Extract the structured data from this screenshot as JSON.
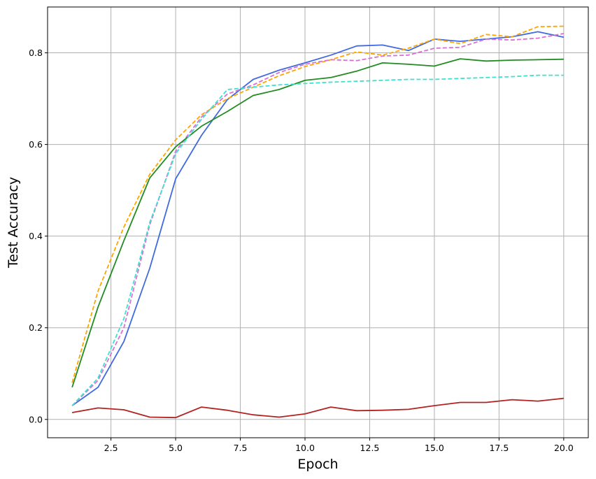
{
  "chart_data": {
    "type": "line",
    "title": "",
    "xlabel": "Epoch",
    "ylabel": "Test Accuracy",
    "xlim": [
      0.05,
      20.95
    ],
    "ylim": [
      -0.04,
      0.9
    ],
    "grid": true,
    "legend": "none",
    "x_ticks": [
      {
        "value": 2.5,
        "label": "2.5"
      },
      {
        "value": 5.0,
        "label": "5.0"
      },
      {
        "value": 7.5,
        "label": "7.5"
      },
      {
        "value": 10.0,
        "label": "10.0"
      },
      {
        "value": 12.5,
        "label": "12.5"
      },
      {
        "value": 15.0,
        "label": "15.0"
      },
      {
        "value": 17.5,
        "label": "17.5"
      },
      {
        "value": 20.0,
        "label": "20.0"
      }
    ],
    "y_ticks": [
      {
        "value": 0.0,
        "label": "0.0"
      },
      {
        "value": 0.2,
        "label": "0.2"
      },
      {
        "value": 0.4,
        "label": "0.4"
      },
      {
        "value": 0.6,
        "label": "0.6"
      },
      {
        "value": 0.8,
        "label": "0.8"
      }
    ],
    "x": [
      1,
      2,
      3,
      4,
      5,
      6,
      7,
      8,
      9,
      10,
      11,
      12,
      13,
      14,
      15,
      16,
      17,
      18,
      19,
      20
    ],
    "series": [
      {
        "color": "#4169e1",
        "dash": "solid",
        "values": [
          0.03,
          0.07,
          0.17,
          0.33,
          0.525,
          0.62,
          0.698,
          0.742,
          0.762,
          0.778,
          0.795,
          0.815,
          0.817,
          0.805,
          0.83,
          0.825,
          0.83,
          0.835,
          0.846,
          0.834
        ]
      },
      {
        "color": "#ffa500",
        "dash": "dashed",
        "values": [
          0.08,
          0.28,
          0.42,
          0.535,
          0.61,
          0.665,
          0.7,
          0.725,
          0.75,
          0.77,
          0.785,
          0.802,
          0.795,
          0.81,
          0.83,
          0.82,
          0.84,
          0.835,
          0.857,
          0.858
        ]
      },
      {
        "color": "#da70d6",
        "dash": "dashed",
        "values": [
          0.03,
          0.085,
          0.2,
          0.425,
          0.585,
          0.66,
          0.71,
          0.73,
          0.757,
          0.775,
          0.785,
          0.783,
          0.793,
          0.795,
          0.81,
          0.812,
          0.83,
          0.828,
          0.832,
          0.842
        ]
      },
      {
        "color": "#228b22",
        "dash": "solid",
        "values": [
          0.07,
          0.245,
          0.39,
          0.527,
          0.595,
          0.64,
          0.672,
          0.707,
          0.72,
          0.74,
          0.746,
          0.76,
          0.778,
          0.775,
          0.771,
          0.787,
          0.782,
          0.784,
          0.785,
          0.786
        ]
      },
      {
        "color": "#40e0d0",
        "dash": "dashed",
        "values": [
          0.03,
          0.09,
          0.22,
          0.43,
          0.58,
          0.655,
          0.72,
          0.725,
          0.73,
          0.733,
          0.736,
          0.738,
          0.74,
          0.742,
          0.742,
          0.744,
          0.746,
          0.748,
          0.751,
          0.751
        ]
      },
      {
        "color": "#b22222",
        "dash": "solid",
        "values": [
          0.015,
          0.025,
          0.021,
          0.005,
          0.004,
          0.027,
          0.02,
          0.01,
          0.005,
          0.012,
          0.027,
          0.019,
          0.02,
          0.022,
          0.03,
          0.037,
          0.037,
          0.043,
          0.04,
          0.046
        ]
      }
    ]
  }
}
